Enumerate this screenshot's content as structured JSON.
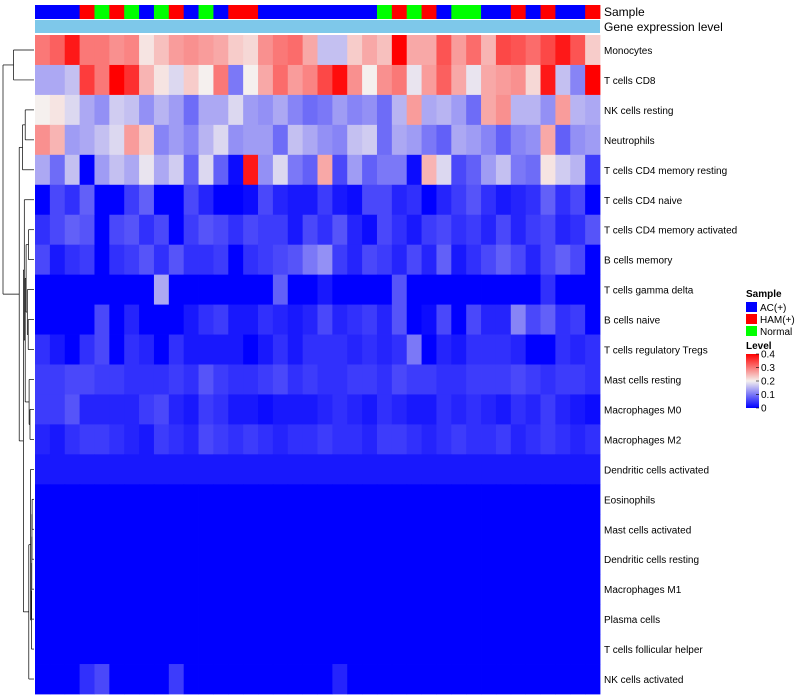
{
  "chart_data": {
    "type": "heatmap",
    "title": "",
    "annotation_tracks": [
      "Sample",
      "Gene expression level"
    ],
    "rows": [
      "Monocytes",
      "T cells CD8",
      "NK cells resting",
      "Neutrophils",
      "T cells CD4 memory resting",
      "T cells CD4 naive",
      "T cells CD4 memory activated",
      "B cells memory",
      "T cells gamma delta",
      "B cells naive",
      "T cells regulatory  Tregs",
      "Mast cells resting",
      "Macrophages M0",
      "Macrophages M2",
      "Dendritic cells activated",
      "Eosinophils",
      "Mast cells activated",
      "Dendritic cells resting",
      "Macrophages M1",
      "Plasma cells",
      "T cells follicular helper",
      "NK cells activated"
    ],
    "n_columns": 38,
    "sample_groups": [
      "AC",
      "AC",
      "AC",
      "HAM",
      "Normal",
      "HAM",
      "Normal",
      "AC",
      "Normal",
      "HAM",
      "AC",
      "Normal",
      "AC",
      "HAM",
      "HAM",
      "AC",
      "AC",
      "AC",
      "AC",
      "AC",
      "AC",
      "AC",
      "AC",
      "Normal",
      "HAM",
      "Normal",
      "HAM",
      "AC",
      "Normal",
      "Normal",
      "AC",
      "AC",
      "HAM",
      "AC",
      "HAM",
      "AC",
      "AC",
      "HAM"
    ],
    "legend": {
      "sample_title": "Sample",
      "sample_entries": [
        {
          "key": "AC",
          "label": "AC(+)",
          "color": "#0000ff"
        },
        {
          "key": "HAM",
          "label": "HAM(+)",
          "color": "#ff0000"
        },
        {
          "key": "Normal",
          "label": "Normal",
          "color": "#00ff00"
        }
      ],
      "level_title": "Level",
      "level_ticks": [
        "0.4",
        "0.3",
        "0.2",
        "0.1",
        "0"
      ],
      "level_range": [
        0,
        0.4
      ]
    },
    "expression_track_color": "#7ec8ea",
    "colors": {
      "low": "#0000ff",
      "mid": "#f5f0ee",
      "high": "#ff0000"
    },
    "values": [
      [
        0.3,
        0.32,
        0.38,
        0.3,
        0.3,
        0.28,
        0.29,
        0.21,
        0.24,
        0.27,
        0.28,
        0.27,
        0.26,
        0.23,
        0.22,
        0.28,
        0.3,
        0.31,
        0.26,
        0.16,
        0.16,
        0.23,
        0.26,
        0.24,
        0.4,
        0.26,
        0.26,
        0.33,
        0.27,
        0.31,
        0.25,
        0.34,
        0.33,
        0.31,
        0.34,
        0.38,
        0.33,
        0.23
      ],
      [
        0.14,
        0.14,
        0.16,
        0.35,
        0.3,
        0.4,
        0.36,
        0.25,
        0.21,
        0.18,
        0.23,
        0.2,
        0.3,
        0.1,
        0.2,
        0.26,
        0.31,
        0.27,
        0.29,
        0.34,
        0.39,
        0.28,
        0.2,
        0.28,
        0.3,
        0.19,
        0.27,
        0.32,
        0.26,
        0.19,
        0.26,
        0.27,
        0.28,
        0.22,
        0.38,
        0.16,
        0.11,
        0.4
      ],
      [
        0.2,
        0.21,
        0.18,
        0.14,
        0.12,
        0.17,
        0.16,
        0.12,
        0.15,
        0.13,
        0.09,
        0.14,
        0.14,
        0.18,
        0.13,
        0.12,
        0.14,
        0.11,
        0.09,
        0.1,
        0.13,
        0.11,
        0.12,
        0.09,
        0.15,
        0.27,
        0.14,
        0.15,
        0.13,
        0.09,
        0.26,
        0.28,
        0.15,
        0.15,
        0.12,
        0.27,
        0.15,
        0.14
      ],
      [
        0.28,
        0.25,
        0.13,
        0.14,
        0.16,
        0.18,
        0.27,
        0.23,
        0.11,
        0.13,
        0.11,
        0.15,
        0.18,
        0.12,
        0.13,
        0.13,
        0.09,
        0.16,
        0.14,
        0.12,
        0.11,
        0.16,
        0.17,
        0.09,
        0.14,
        0.13,
        0.1,
        0.08,
        0.14,
        0.13,
        0.11,
        0.08,
        0.11,
        0.12,
        0.26,
        0.08,
        0.12,
        0.13
      ],
      [
        0.14,
        0.09,
        0.16,
        0.0,
        0.13,
        0.16,
        0.14,
        0.19,
        0.14,
        0.17,
        0.08,
        0.18,
        0.08,
        0.01,
        0.38,
        0.12,
        0.18,
        0.1,
        0.08,
        0.26,
        0.06,
        0.13,
        0.08,
        0.1,
        0.1,
        0.01,
        0.25,
        0.18,
        0.06,
        0.08,
        0.13,
        0.16,
        0.1,
        0.09,
        0.21,
        0.17,
        0.15,
        0.05
      ],
      [
        0.0,
        0.06,
        0.04,
        0.08,
        0.0,
        0.0,
        0.05,
        0.08,
        0.0,
        0.0,
        0.06,
        0.03,
        0.0,
        0.0,
        0.01,
        0.06,
        0.03,
        0.02,
        0.02,
        0.05,
        0.02,
        0.01,
        0.06,
        0.06,
        0.03,
        0.04,
        0.0,
        0.03,
        0.05,
        0.07,
        0.04,
        0.02,
        0.03,
        0.04,
        0.08,
        0.04,
        0.06,
        0.0
      ],
      [
        0.04,
        0.06,
        0.08,
        0.07,
        0.0,
        0.06,
        0.07,
        0.04,
        0.06,
        0.0,
        0.05,
        0.07,
        0.06,
        0.04,
        0.06,
        0.05,
        0.05,
        0.02,
        0.06,
        0.04,
        0.07,
        0.03,
        0.01,
        0.06,
        0.04,
        0.02,
        0.05,
        0.06,
        0.04,
        0.05,
        0.03,
        0.06,
        0.03,
        0.05,
        0.06,
        0.03,
        0.04,
        0.07
      ],
      [
        0.06,
        0.02,
        0.04,
        0.05,
        0.0,
        0.04,
        0.05,
        0.07,
        0.04,
        0.07,
        0.04,
        0.04,
        0.05,
        0.0,
        0.04,
        0.05,
        0.06,
        0.07,
        0.1,
        0.12,
        0.05,
        0.03,
        0.06,
        0.05,
        0.03,
        0.06,
        0.03,
        0.08,
        0.02,
        0.04,
        0.06,
        0.08,
        0.06,
        0.03,
        0.06,
        0.08,
        0.06,
        0.0
      ],
      [
        0.0,
        0.0,
        0.0,
        0.0,
        0.0,
        0.0,
        0.0,
        0.0,
        0.14,
        0.0,
        0.0,
        0.0,
        0.0,
        0.0,
        0.0,
        0.0,
        0.08,
        0.0,
        0.0,
        0.02,
        0.0,
        0.0,
        0.0,
        0.0,
        0.07,
        0.0,
        0.0,
        0.0,
        0.0,
        0.0,
        0.0,
        0.0,
        0.0,
        0.0,
        0.04,
        0.0,
        0.0,
        0.0
      ],
      [
        0.0,
        0.0,
        0.0,
        0.0,
        0.06,
        0.0,
        0.03,
        0.0,
        0.0,
        0.0,
        0.02,
        0.04,
        0.05,
        0.02,
        0.02,
        0.04,
        0.03,
        0.02,
        0.03,
        0.06,
        0.03,
        0.04,
        0.05,
        0.03,
        0.07,
        0.0,
        0.01,
        0.06,
        0.0,
        0.06,
        0.03,
        0.03,
        0.11,
        0.06,
        0.08,
        0.04,
        0.05,
        0.0
      ],
      [
        0.04,
        0.02,
        0.0,
        0.04,
        0.06,
        0.0,
        0.04,
        0.03,
        0.0,
        0.04,
        0.02,
        0.02,
        0.02,
        0.02,
        0.0,
        0.02,
        0.04,
        0.02,
        0.04,
        0.04,
        0.04,
        0.03,
        0.04,
        0.03,
        0.04,
        0.1,
        0.0,
        0.03,
        0.02,
        0.04,
        0.04,
        0.04,
        0.03,
        0.0,
        0.0,
        0.04,
        0.03,
        0.04
      ],
      [
        0.05,
        0.05,
        0.06,
        0.06,
        0.05,
        0.05,
        0.04,
        0.04,
        0.04,
        0.05,
        0.04,
        0.07,
        0.05,
        0.04,
        0.04,
        0.05,
        0.06,
        0.04,
        0.05,
        0.04,
        0.04,
        0.05,
        0.05,
        0.04,
        0.06,
        0.05,
        0.05,
        0.04,
        0.04,
        0.05,
        0.05,
        0.05,
        0.06,
        0.05,
        0.04,
        0.05,
        0.05,
        0.04
      ],
      [
        0.05,
        0.05,
        0.07,
        0.03,
        0.03,
        0.03,
        0.03,
        0.05,
        0.06,
        0.03,
        0.02,
        0.05,
        0.04,
        0.02,
        0.02,
        0.01,
        0.02,
        0.02,
        0.02,
        0.03,
        0.04,
        0.03,
        0.02,
        0.04,
        0.03,
        0.02,
        0.02,
        0.04,
        0.03,
        0.04,
        0.03,
        0.02,
        0.04,
        0.03,
        0.05,
        0.03,
        0.02,
        0.01
      ],
      [
        0.03,
        0.02,
        0.04,
        0.05,
        0.05,
        0.04,
        0.03,
        0.02,
        0.05,
        0.04,
        0.03,
        0.06,
        0.05,
        0.04,
        0.05,
        0.04,
        0.03,
        0.04,
        0.04,
        0.05,
        0.04,
        0.04,
        0.03,
        0.05,
        0.05,
        0.04,
        0.03,
        0.04,
        0.05,
        0.04,
        0.04,
        0.05,
        0.03,
        0.04,
        0.05,
        0.04,
        0.03,
        0.04
      ],
      [
        0.02,
        0.02,
        0.02,
        0.02,
        0.02,
        0.02,
        0.02,
        0.02,
        0.02,
        0.02,
        0.02,
        0.02,
        0.02,
        0.02,
        0.02,
        0.02,
        0.02,
        0.02,
        0.02,
        0.02,
        0.02,
        0.02,
        0.02,
        0.02,
        0.02,
        0.02,
        0.02,
        0.02,
        0.02,
        0.02,
        0.02,
        0.02,
        0.02,
        0.02,
        0.02,
        0.02,
        0.02,
        0.02
      ],
      [
        0,
        0,
        0,
        0,
        0,
        0,
        0,
        0,
        0,
        0,
        0,
        0,
        0,
        0,
        0,
        0,
        0,
        0,
        0,
        0,
        0,
        0,
        0,
        0,
        0,
        0,
        0,
        0,
        0,
        0,
        0,
        0,
        0,
        0,
        0,
        0,
        0,
        0
      ],
      [
        0,
        0,
        0,
        0,
        0,
        0,
        0,
        0,
        0,
        0,
        0,
        0,
        0,
        0,
        0,
        0,
        0,
        0,
        0,
        0,
        0,
        0,
        0,
        0,
        0,
        0,
        0,
        0,
        0,
        0,
        0,
        0,
        0,
        0,
        0,
        0,
        0,
        0
      ],
      [
        0,
        0,
        0,
        0,
        0,
        0,
        0,
        0,
        0,
        0,
        0,
        0,
        0,
        0,
        0,
        0,
        0,
        0,
        0,
        0,
        0,
        0,
        0,
        0,
        0,
        0,
        0,
        0,
        0,
        0,
        0,
        0,
        0,
        0,
        0,
        0,
        0,
        0
      ],
      [
        0,
        0,
        0,
        0,
        0,
        0,
        0,
        0,
        0,
        0,
        0,
        0,
        0,
        0,
        0,
        0,
        0,
        0,
        0,
        0,
        0,
        0,
        0,
        0,
        0,
        0,
        0,
        0,
        0,
        0,
        0,
        0,
        0,
        0,
        0,
        0,
        0,
        0
      ],
      [
        0,
        0,
        0,
        0,
        0,
        0,
        0,
        0,
        0,
        0,
        0,
        0,
        0,
        0,
        0,
        0,
        0,
        0,
        0,
        0,
        0,
        0,
        0,
        0,
        0,
        0,
        0,
        0,
        0,
        0,
        0,
        0,
        0,
        0,
        0,
        0,
        0,
        0
      ],
      [
        0,
        0,
        0,
        0,
        0,
        0,
        0,
        0,
        0,
        0,
        0,
        0,
        0,
        0,
        0,
        0,
        0,
        0,
        0,
        0,
        0,
        0,
        0,
        0,
        0,
        0,
        0,
        0,
        0,
        0,
        0,
        0,
        0,
        0,
        0,
        0,
        0,
        0
      ],
      [
        0.0,
        0.0,
        0.0,
        0.04,
        0.06,
        0.0,
        0.0,
        0.0,
        0.0,
        0.05,
        0.0,
        0.0,
        0.0,
        0.0,
        0.0,
        0.0,
        0.0,
        0.0,
        0.0,
        0.0,
        0.03,
        0.0,
        0.0,
        0.0,
        0.0,
        0.0,
        0.0,
        0.0,
        0.0,
        0.0,
        0.0,
        0.0,
        0.0,
        0.0,
        0.0,
        0.0,
        0.0,
        0.0
      ]
    ]
  }
}
